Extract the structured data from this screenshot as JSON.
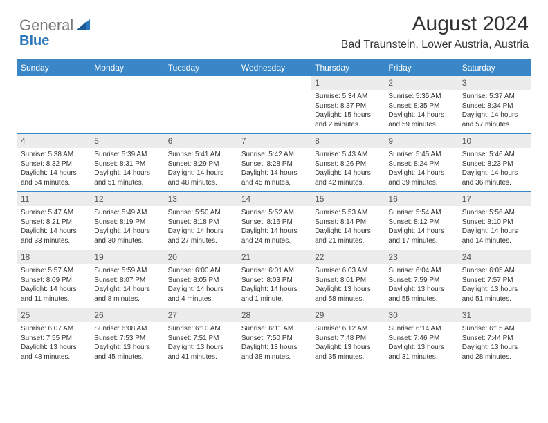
{
  "logo": {
    "text_gray": "General",
    "text_blue": "Blue"
  },
  "title": "August 2024",
  "location": "Bad Traunstein, Lower Austria, Austria",
  "colors": {
    "header_bg": "#3a87c8",
    "header_text": "#ffffff",
    "day_number_bg": "#ececec",
    "border": "#3a87c8",
    "logo_gray": "#7a7a7a",
    "logo_blue": "#2a77bb"
  },
  "weekdays": [
    "Sunday",
    "Monday",
    "Tuesday",
    "Wednesday",
    "Thursday",
    "Friday",
    "Saturday"
  ],
  "weeks": [
    [
      null,
      null,
      null,
      null,
      {
        "n": "1",
        "sr": "Sunrise: 5:34 AM",
        "ss": "Sunset: 8:37 PM",
        "d1": "Daylight: 15 hours",
        "d2": "and 2 minutes."
      },
      {
        "n": "2",
        "sr": "Sunrise: 5:35 AM",
        "ss": "Sunset: 8:35 PM",
        "d1": "Daylight: 14 hours",
        "d2": "and 59 minutes."
      },
      {
        "n": "3",
        "sr": "Sunrise: 5:37 AM",
        "ss": "Sunset: 8:34 PM",
        "d1": "Daylight: 14 hours",
        "d2": "and 57 minutes."
      }
    ],
    [
      {
        "n": "4",
        "sr": "Sunrise: 5:38 AM",
        "ss": "Sunset: 8:32 PM",
        "d1": "Daylight: 14 hours",
        "d2": "and 54 minutes."
      },
      {
        "n": "5",
        "sr": "Sunrise: 5:39 AM",
        "ss": "Sunset: 8:31 PM",
        "d1": "Daylight: 14 hours",
        "d2": "and 51 minutes."
      },
      {
        "n": "6",
        "sr": "Sunrise: 5:41 AM",
        "ss": "Sunset: 8:29 PM",
        "d1": "Daylight: 14 hours",
        "d2": "and 48 minutes."
      },
      {
        "n": "7",
        "sr": "Sunrise: 5:42 AM",
        "ss": "Sunset: 8:28 PM",
        "d1": "Daylight: 14 hours",
        "d2": "and 45 minutes."
      },
      {
        "n": "8",
        "sr": "Sunrise: 5:43 AM",
        "ss": "Sunset: 8:26 PM",
        "d1": "Daylight: 14 hours",
        "d2": "and 42 minutes."
      },
      {
        "n": "9",
        "sr": "Sunrise: 5:45 AM",
        "ss": "Sunset: 8:24 PM",
        "d1": "Daylight: 14 hours",
        "d2": "and 39 minutes."
      },
      {
        "n": "10",
        "sr": "Sunrise: 5:46 AM",
        "ss": "Sunset: 8:23 PM",
        "d1": "Daylight: 14 hours",
        "d2": "and 36 minutes."
      }
    ],
    [
      {
        "n": "11",
        "sr": "Sunrise: 5:47 AM",
        "ss": "Sunset: 8:21 PM",
        "d1": "Daylight: 14 hours",
        "d2": "and 33 minutes."
      },
      {
        "n": "12",
        "sr": "Sunrise: 5:49 AM",
        "ss": "Sunset: 8:19 PM",
        "d1": "Daylight: 14 hours",
        "d2": "and 30 minutes."
      },
      {
        "n": "13",
        "sr": "Sunrise: 5:50 AM",
        "ss": "Sunset: 8:18 PM",
        "d1": "Daylight: 14 hours",
        "d2": "and 27 minutes."
      },
      {
        "n": "14",
        "sr": "Sunrise: 5:52 AM",
        "ss": "Sunset: 8:16 PM",
        "d1": "Daylight: 14 hours",
        "d2": "and 24 minutes."
      },
      {
        "n": "15",
        "sr": "Sunrise: 5:53 AM",
        "ss": "Sunset: 8:14 PM",
        "d1": "Daylight: 14 hours",
        "d2": "and 21 minutes."
      },
      {
        "n": "16",
        "sr": "Sunrise: 5:54 AM",
        "ss": "Sunset: 8:12 PM",
        "d1": "Daylight: 14 hours",
        "d2": "and 17 minutes."
      },
      {
        "n": "17",
        "sr": "Sunrise: 5:56 AM",
        "ss": "Sunset: 8:10 PM",
        "d1": "Daylight: 14 hours",
        "d2": "and 14 minutes."
      }
    ],
    [
      {
        "n": "18",
        "sr": "Sunrise: 5:57 AM",
        "ss": "Sunset: 8:09 PM",
        "d1": "Daylight: 14 hours",
        "d2": "and 11 minutes."
      },
      {
        "n": "19",
        "sr": "Sunrise: 5:59 AM",
        "ss": "Sunset: 8:07 PM",
        "d1": "Daylight: 14 hours",
        "d2": "and 8 minutes."
      },
      {
        "n": "20",
        "sr": "Sunrise: 6:00 AM",
        "ss": "Sunset: 8:05 PM",
        "d1": "Daylight: 14 hours",
        "d2": "and 4 minutes."
      },
      {
        "n": "21",
        "sr": "Sunrise: 6:01 AM",
        "ss": "Sunset: 8:03 PM",
        "d1": "Daylight: 14 hours",
        "d2": "and 1 minute."
      },
      {
        "n": "22",
        "sr": "Sunrise: 6:03 AM",
        "ss": "Sunset: 8:01 PM",
        "d1": "Daylight: 13 hours",
        "d2": "and 58 minutes."
      },
      {
        "n": "23",
        "sr": "Sunrise: 6:04 AM",
        "ss": "Sunset: 7:59 PM",
        "d1": "Daylight: 13 hours",
        "d2": "and 55 minutes."
      },
      {
        "n": "24",
        "sr": "Sunrise: 6:05 AM",
        "ss": "Sunset: 7:57 PM",
        "d1": "Daylight: 13 hours",
        "d2": "and 51 minutes."
      }
    ],
    [
      {
        "n": "25",
        "sr": "Sunrise: 6:07 AM",
        "ss": "Sunset: 7:55 PM",
        "d1": "Daylight: 13 hours",
        "d2": "and 48 minutes."
      },
      {
        "n": "26",
        "sr": "Sunrise: 6:08 AM",
        "ss": "Sunset: 7:53 PM",
        "d1": "Daylight: 13 hours",
        "d2": "and 45 minutes."
      },
      {
        "n": "27",
        "sr": "Sunrise: 6:10 AM",
        "ss": "Sunset: 7:51 PM",
        "d1": "Daylight: 13 hours",
        "d2": "and 41 minutes."
      },
      {
        "n": "28",
        "sr": "Sunrise: 6:11 AM",
        "ss": "Sunset: 7:50 PM",
        "d1": "Daylight: 13 hours",
        "d2": "and 38 minutes."
      },
      {
        "n": "29",
        "sr": "Sunrise: 6:12 AM",
        "ss": "Sunset: 7:48 PM",
        "d1": "Daylight: 13 hours",
        "d2": "and 35 minutes."
      },
      {
        "n": "30",
        "sr": "Sunrise: 6:14 AM",
        "ss": "Sunset: 7:46 PM",
        "d1": "Daylight: 13 hours",
        "d2": "and 31 minutes."
      },
      {
        "n": "31",
        "sr": "Sunrise: 6:15 AM",
        "ss": "Sunset: 7:44 PM",
        "d1": "Daylight: 13 hours",
        "d2": "and 28 minutes."
      }
    ]
  ]
}
